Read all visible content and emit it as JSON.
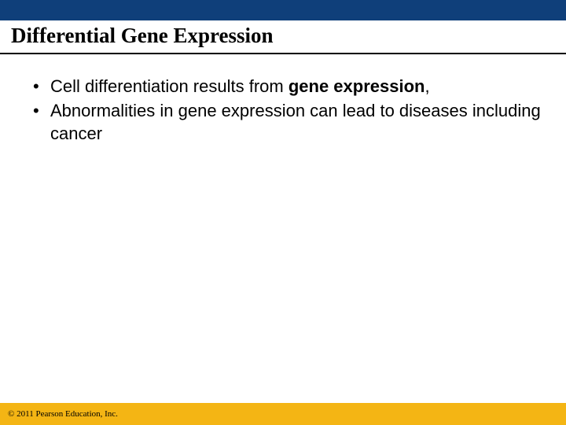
{
  "colors": {
    "top_bar": "#0f3f7a",
    "title_underline": "#000000",
    "footer_bar": "#f4b514",
    "text": "#000000",
    "background": "#ffffff"
  },
  "title": "Differential Gene Expression",
  "bullets": [
    {
      "prefix": "Cell differentiation results from  ",
      "bold": "gene expression",
      "suffix": ","
    },
    {
      "prefix": "Abnormalities in gene expression can lead to diseases including cancer",
      "bold": "",
      "suffix": ""
    }
  ],
  "footer": "© 2011 Pearson Education, Inc."
}
